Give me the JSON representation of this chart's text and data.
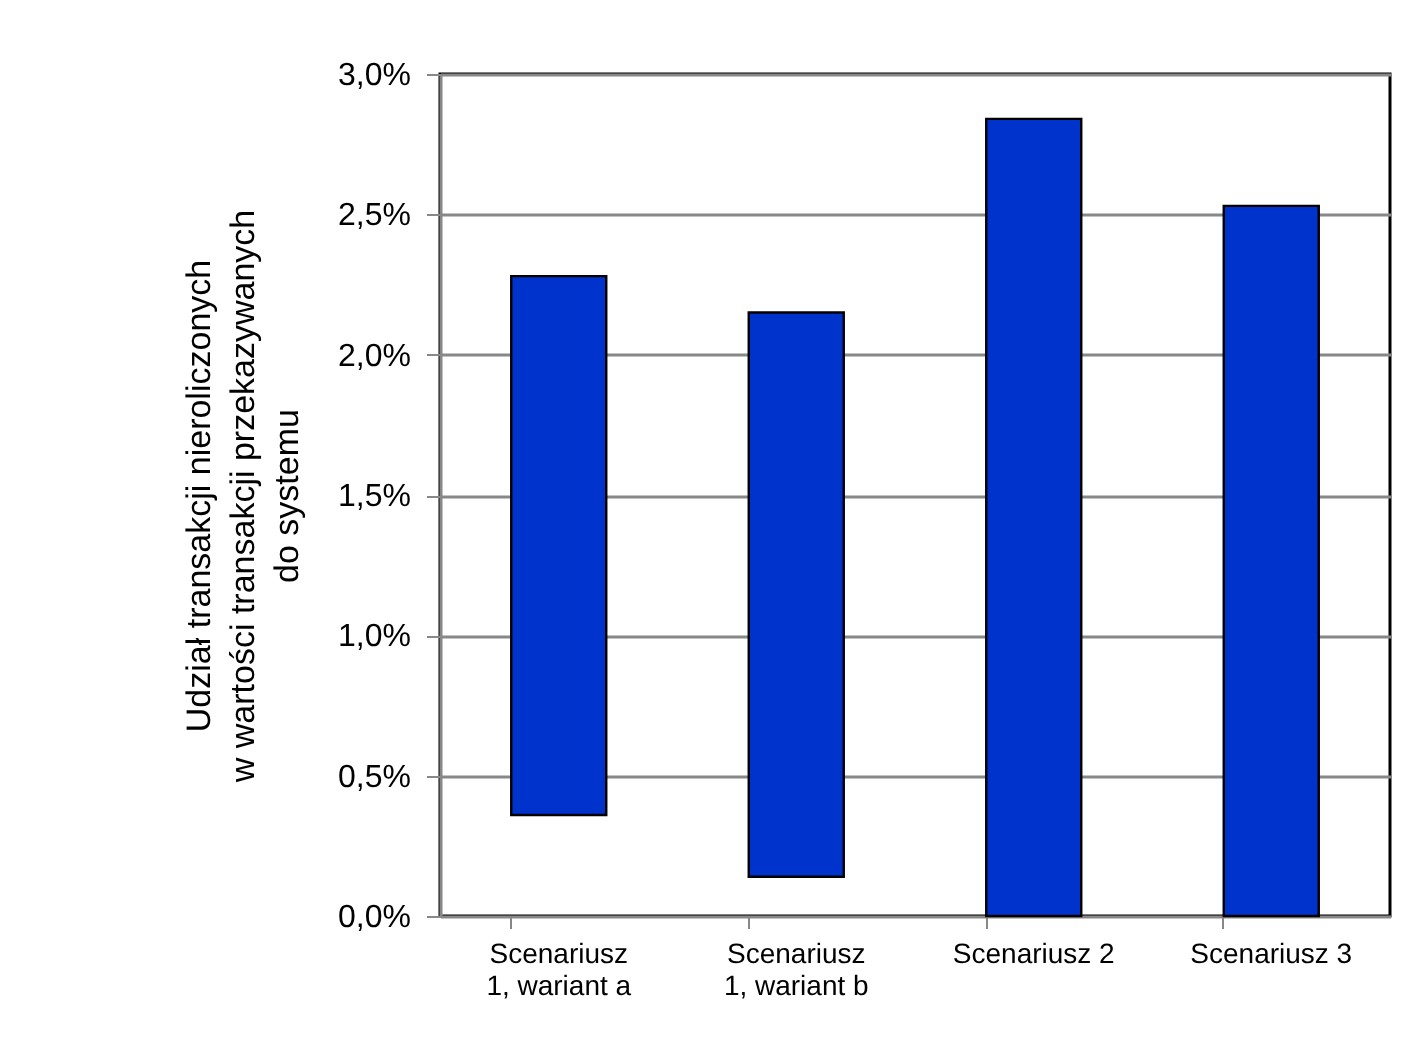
{
  "chart_data": {
    "type": "bar",
    "ylabel": "Udział transakcji nieroliczonych\nw wartości transakcji przekazywanych\ndo systemu",
    "categories": [
      "Scenariusz 1, wariant a",
      "Scenariusz 1, wariant b",
      "Scenariusz 2",
      "Scenariusz 3"
    ],
    "base": [
      0.36,
      0.14,
      0,
      0
    ],
    "values": [
      1.92,
      2.01,
      2.84,
      2.53
    ],
    "color": "#0033cc",
    "ylim": [
      0,
      3
    ],
    "yticks": [
      {
        "value": 0,
        "label": "0,0%"
      },
      {
        "value": 0.5,
        "label": "0,5%"
      },
      {
        "value": 1,
        "label": "1,0%"
      },
      {
        "value": 1.5,
        "label": "1,5%"
      },
      {
        "value": 2,
        "label": "2,0%"
      },
      {
        "value": 2.5,
        "label": "2,5%"
      },
      {
        "value": 3,
        "label": "3,0%"
      }
    ],
    "grid": "y"
  }
}
